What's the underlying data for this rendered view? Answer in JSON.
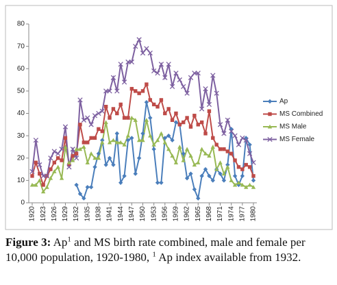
{
  "chart_data": {
    "type": "line",
    "x": [
      1920,
      1921,
      1922,
      1923,
      1924,
      1925,
      1926,
      1927,
      1928,
      1929,
      1930,
      1931,
      1932,
      1933,
      1934,
      1935,
      1936,
      1937,
      1938,
      1939,
      1940,
      1941,
      1942,
      1943,
      1944,
      1945,
      1946,
      1947,
      1948,
      1949,
      1950,
      1951,
      1952,
      1953,
      1954,
      1955,
      1956,
      1957,
      1958,
      1959,
      1960,
      1961,
      1962,
      1963,
      1964,
      1965,
      1966,
      1967,
      1968,
      1969,
      1970,
      1971,
      1972,
      1973,
      1974,
      1975,
      1976,
      1977,
      1978,
      1979,
      1980
    ],
    "xlim": [
      1920,
      1980
    ],
    "xticks": [
      1920,
      1923,
      1926,
      1929,
      1932,
      1935,
      1938,
      1941,
      1944,
      1947,
      1950,
      1953,
      1956,
      1959,
      1962,
      1965,
      1968,
      1971,
      1974,
      1977,
      1980
    ],
    "ylim": [
      0,
      80
    ],
    "yticks": [
      0,
      10,
      20,
      30,
      40,
      50,
      60,
      70,
      80
    ],
    "legend": "right",
    "series": [
      {
        "name": "Ap",
        "color": "#4a7ebb",
        "marker": "diamond",
        "values": [
          null,
          null,
          null,
          null,
          null,
          null,
          null,
          null,
          null,
          null,
          null,
          null,
          8,
          4,
          2,
          7,
          7,
          16,
          22,
          28,
          17,
          20,
          17,
          31,
          9,
          12,
          28,
          29,
          13,
          20,
          31,
          45,
          38,
          24,
          9,
          9,
          29,
          30,
          28,
          36,
          35,
          22,
          11,
          13,
          6,
          2,
          12,
          15,
          12,
          10,
          15,
          13,
          10,
          17,
          33,
          12,
          8,
          12,
          29,
          26,
          10
        ]
      },
      {
        "name": "MS Combined",
        "color": "#be4b48",
        "marker": "square",
        "values": [
          12,
          18,
          13,
          8,
          12,
          15,
          18,
          20,
          19,
          29,
          17,
          21,
          22,
          35,
          27,
          27,
          29,
          29,
          33,
          32,
          43,
          38,
          42,
          40,
          44,
          38,
          38,
          51,
          50,
          49,
          50,
          53,
          46,
          44,
          43,
          46,
          40,
          42,
          37,
          40,
          35,
          36,
          38,
          34,
          39,
          35,
          36,
          31,
          41,
          29,
          26,
          24,
          24,
          23,
          22,
          19,
          16,
          15,
          17,
          16,
          12
        ]
      },
      {
        "name": "MS Male",
        "color": "#98b954",
        "marker": "triangle",
        "values": [
          8,
          8,
          10,
          5,
          7,
          11,
          14,
          16,
          11,
          25,
          18,
          19,
          24,
          24,
          25,
          18,
          22,
          20,
          20,
          27,
          36,
          27,
          28,
          27,
          27,
          26,
          30,
          38,
          37,
          28,
          28,
          37,
          30,
          26,
          28,
          31,
          27,
          24,
          21,
          18,
          25,
          19,
          24,
          21,
          17,
          18,
          24,
          22,
          21,
          25,
          15,
          18,
          13,
          16,
          10,
          8,
          9,
          8,
          7,
          8,
          7
        ]
      },
      {
        "name": "MS Female",
        "color": "#7d60a0",
        "marker": "x",
        "values": [
          14,
          28,
          17,
          12,
          12,
          20,
          23,
          22,
          24,
          34,
          16,
          24,
          20,
          46,
          37,
          38,
          35,
          39,
          40,
          41,
          50,
          50,
          56,
          50,
          62,
          54,
          63,
          63,
          70,
          73,
          67,
          69,
          67,
          59,
          58,
          62,
          56,
          62,
          52,
          58,
          55,
          52,
          49,
          56,
          58,
          58,
          42,
          51,
          44,
          57,
          49,
          35,
          31,
          37,
          32,
          30,
          26,
          29,
          28,
          22,
          18
        ]
      }
    ]
  },
  "caption": {
    "label": "Figure 3:",
    "parts": [
      "Ap",
      "1",
      "and MS birth rate combined, male and female per 10,000 population, 1920-1980,",
      "1",
      "Ap index available from 1932."
    ]
  }
}
